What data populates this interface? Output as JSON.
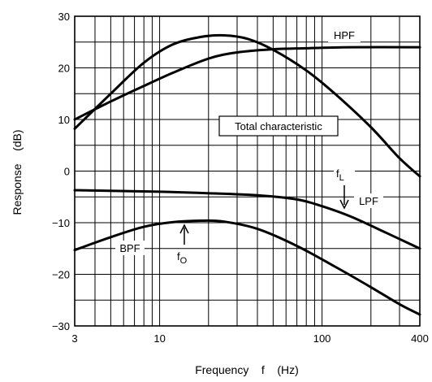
{
  "chart_data": {
    "type": "line",
    "xscale": "log",
    "xlim": [
      3,
      400
    ],
    "ylim": [
      -30,
      30
    ],
    "grid": true,
    "xlabel": "Frequency    f    (Hz)",
    "ylabel": "Response    (dB)",
    "xticks": [
      3,
      10,
      100,
      400
    ],
    "xtick_labels": [
      "3",
      "10",
      "100",
      "400"
    ],
    "yticks": [
      30,
      20,
      10,
      0,
      -10,
      -20,
      -30
    ],
    "ytick_labels": [
      "30",
      "20",
      "10",
      "0",
      "−10",
      "−20",
      "−30"
    ],
    "series": [
      {
        "name": "HPF",
        "x": [
          3,
          5,
          8,
          12,
          20,
          30,
          50,
          80,
          150,
          400
        ],
        "values": [
          10,
          13.5,
          16.5,
          19,
          21.8,
          23,
          23.6,
          23.8,
          24,
          24
        ]
      },
      {
        "name": "Total characteristic",
        "x": [
          3,
          5,
          8,
          12,
          18,
          25,
          35,
          50,
          80,
          120,
          200,
          300,
          400
        ],
        "values": [
          8.2,
          15,
          21,
          24.5,
          26,
          26.3,
          25.6,
          23.5,
          19.5,
          15,
          8.5,
          2.5,
          -1
        ]
      },
      {
        "name": "LPF",
        "x": [
          3,
          10,
          20,
          40,
          70,
          100,
          150,
          250,
          400
        ],
        "values": [
          -3.7,
          -4,
          -4.3,
          -4.7,
          -5.5,
          -6.8,
          -8.8,
          -12,
          -15
        ]
      },
      {
        "name": "BPF",
        "x": [
          3,
          5,
          8,
          12,
          18,
          25,
          40,
          70,
          120,
          200,
          300,
          400
        ],
        "values": [
          -15.3,
          -12.8,
          -10.8,
          -9.9,
          -9.6,
          -9.8,
          -11.2,
          -14.5,
          -18.5,
          -22.5,
          -25.8,
          -27.8
        ]
      }
    ],
    "annotations": [
      {
        "text": "f",
        "sub": "L",
        "x": 130,
        "y": -3
      },
      {
        "text": "f",
        "sub": "O",
        "x": 15,
        "y": -10.6
      }
    ]
  }
}
